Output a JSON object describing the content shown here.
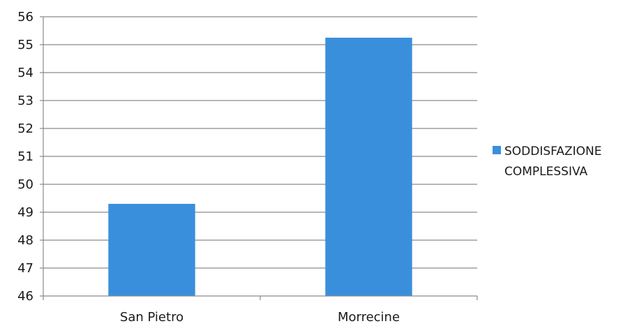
{
  "chart_data": {
    "type": "bar",
    "categories": [
      "San Pietro",
      "Morrecine"
    ],
    "series": [
      {
        "name": "SODDISFAZIONE COMPLESSIVA",
        "values": [
          49.3,
          55.25
        ],
        "color": "#3a8fdc"
      }
    ],
    "ylim": [
      46,
      56
    ],
    "yticks": [
      "46",
      "47",
      "48",
      "49",
      "50",
      "51",
      "52",
      "53",
      "54",
      "55",
      "56"
    ],
    "grid": true,
    "legend_position": "right",
    "legend_lines": [
      "SODDISFAZIONE",
      "COMPLESSIVA"
    ]
  }
}
